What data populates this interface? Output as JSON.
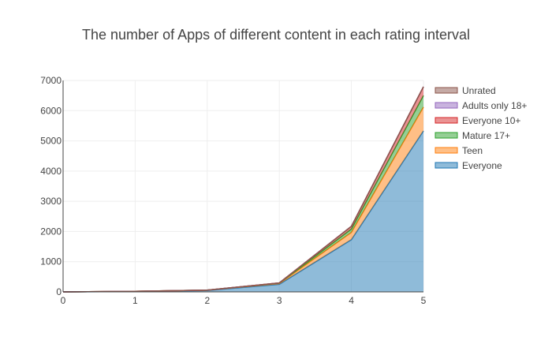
{
  "chart_data": {
    "type": "area",
    "stacked": true,
    "title": "The number of Apps of different content in each rating interval",
    "xlabel": "",
    "ylabel": "",
    "x": [
      0,
      1,
      2,
      3,
      4,
      5
    ],
    "xlim": [
      0,
      5
    ],
    "ylim": [
      0,
      7000
    ],
    "x_ticks": [
      "0",
      "1",
      "2",
      "3",
      "4",
      "5"
    ],
    "y_ticks": [
      "0",
      "1000",
      "2000",
      "3000",
      "4000",
      "5000",
      "6000",
      "7000"
    ],
    "grid": true,
    "legend_position": "top-right",
    "series": [
      {
        "name": "Everyone",
        "color": "#1f77b4",
        "values": [
          0,
          15,
          45,
          250,
          1730,
          5330
        ]
      },
      {
        "name": "Teen",
        "color": "#ff7f0e",
        "values": [
          0,
          3,
          10,
          30,
          240,
          790
        ]
      },
      {
        "name": "Mature 17+",
        "color": "#2ca02c",
        "values": [
          0,
          1,
          3,
          10,
          110,
          380
        ]
      },
      {
        "name": "Everyone 10+",
        "color": "#d62728",
        "values": [
          0,
          1,
          2,
          8,
          90,
          290
        ]
      },
      {
        "name": "Adults only 18+",
        "color": "#9467bd",
        "values": [
          0,
          0,
          0,
          0,
          1,
          2
        ]
      },
      {
        "name": "Unrated",
        "color": "#8c564b",
        "values": [
          0,
          0,
          0,
          0,
          1,
          1
        ]
      }
    ]
  }
}
